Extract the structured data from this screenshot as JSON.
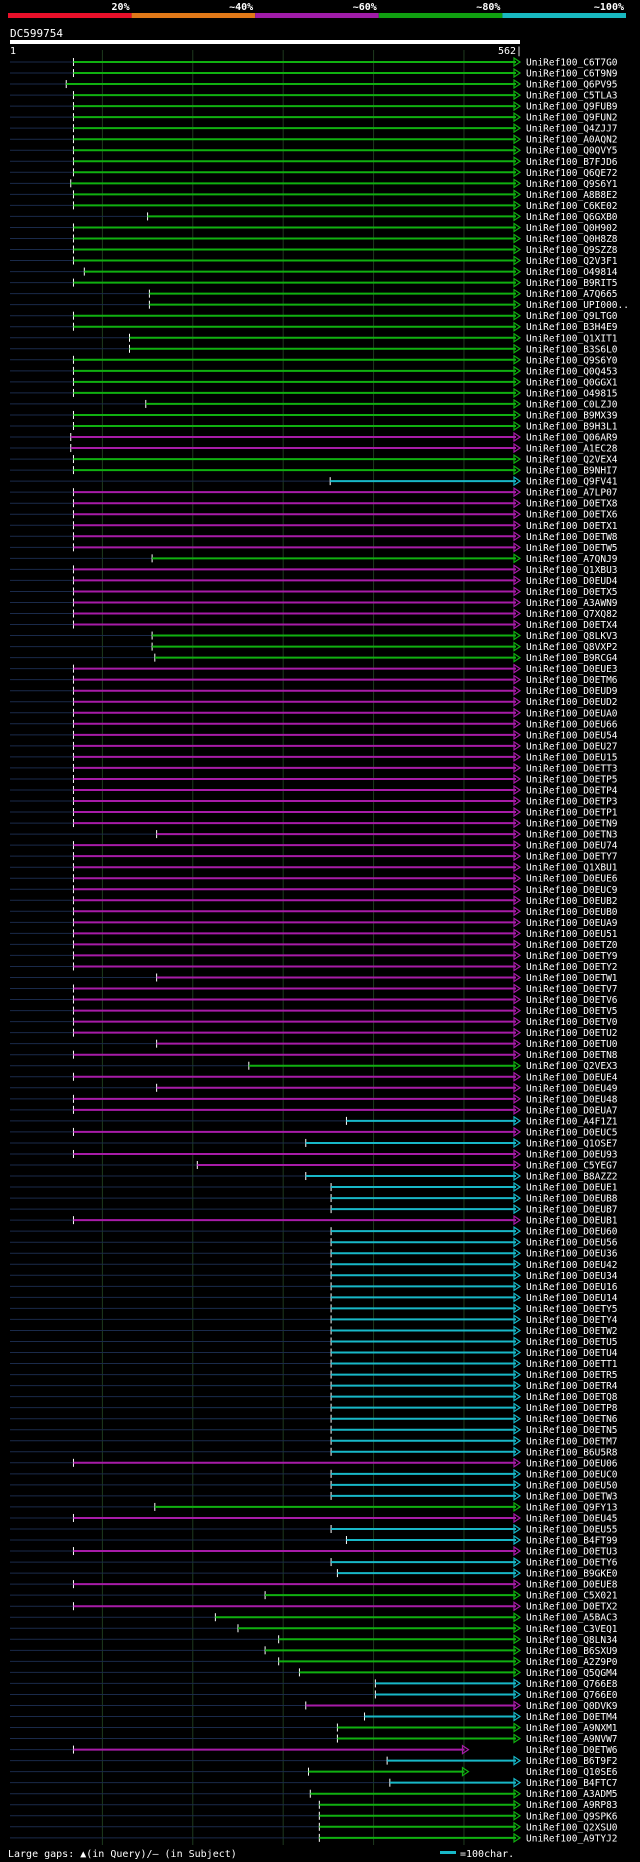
{
  "legend_scale": {
    "segments": [
      {
        "label": "20%",
        "color": "#e8102a"
      },
      {
        "label": "~40%",
        "color": "#e07818"
      },
      {
        "label": "~60%",
        "color": "#a01ca8"
      },
      {
        "label": "~80%",
        "color": "#10a010"
      },
      {
        "label": "~100%",
        "color": "#18b8c0"
      }
    ]
  },
  "query": {
    "name": "DC599754",
    "start_label": "1",
    "end_label": "562|",
    "length": 562
  },
  "hits": [
    {
      "name": "UniRef100_C6T7G0",
      "s": 68,
      "e": 562,
      "c": "g"
    },
    {
      "name": "UniRef100_C6T9N9",
      "s": 68,
      "e": 562,
      "c": "g"
    },
    {
      "name": "UniRef100_Q6PV95",
      "s": 60,
      "e": 562,
      "c": "g"
    },
    {
      "name": "UniRef100_C5TLA3",
      "s": 68,
      "e": 562,
      "c": "g"
    },
    {
      "name": "UniRef100_Q9FUB9",
      "s": 68,
      "e": 562,
      "c": "g"
    },
    {
      "name": "UniRef100_Q9FUN2",
      "s": 68,
      "e": 562,
      "c": "g"
    },
    {
      "name": "UniRef100_Q4ZJJ7",
      "s": 68,
      "e": 562,
      "c": "g"
    },
    {
      "name": "UniRef100_A0AQN2",
      "s": 68,
      "e": 562,
      "c": "g"
    },
    {
      "name": "UniRef100_Q0QVY5",
      "s": 68,
      "e": 562,
      "c": "g"
    },
    {
      "name": "UniRef100_B7FJD6",
      "s": 68,
      "e": 562,
      "c": "g"
    },
    {
      "name": "UniRef100_Q6QE72",
      "s": 68,
      "e": 562,
      "c": "g"
    },
    {
      "name": "UniRef100_Q9S6Y1",
      "s": 65,
      "e": 562,
      "c": "g"
    },
    {
      "name": "UniRef100_A8B8E2",
      "s": 68,
      "e": 562,
      "c": "g"
    },
    {
      "name": "UniRef100_C6KE02",
      "s": 68,
      "e": 562,
      "c": "g"
    },
    {
      "name": "UniRef100_Q6GXB0",
      "s": 150,
      "e": 562,
      "c": "g"
    },
    {
      "name": "UniRef100_Q0H902",
      "s": 68,
      "e": 562,
      "c": "g"
    },
    {
      "name": "UniRef100_Q0H8Z8",
      "s": 68,
      "e": 562,
      "c": "g"
    },
    {
      "name": "UniRef100_Q9SZZ8",
      "s": 68,
      "e": 562,
      "c": "g"
    },
    {
      "name": "UniRef100_Q2V3F1",
      "s": 68,
      "e": 562,
      "c": "g"
    },
    {
      "name": "UniRef100_O49814",
      "s": 80,
      "e": 562,
      "c": "g"
    },
    {
      "name": "UniRef100_B9RIT5",
      "s": 68,
      "e": 562,
      "c": "g"
    },
    {
      "name": "UniRef100_A7Q665",
      "s": 152,
      "e": 562,
      "c": "g"
    },
    {
      "name": "UniRef100_UPI000..",
      "s": 152,
      "e": 562,
      "c": "g"
    },
    {
      "name": "UniRef100_Q9LTG0",
      "s": 68,
      "e": 562,
      "c": "g"
    },
    {
      "name": "UniRef100_B3H4E9",
      "s": 68,
      "e": 562,
      "c": "g"
    },
    {
      "name": "UniRef100_Q1XIT1",
      "s": 130,
      "e": 562,
      "c": "g"
    },
    {
      "name": "UniRef100_B3S6L0",
      "s": 130,
      "e": 562,
      "c": "g"
    },
    {
      "name": "UniRef100_Q9S6Y0",
      "s": 68,
      "e": 562,
      "c": "g"
    },
    {
      "name": "UniRef100_Q0Q453",
      "s": 68,
      "e": 562,
      "c": "g"
    },
    {
      "name": "UniRef100_Q0GGX1",
      "s": 68,
      "e": 562,
      "c": "g"
    },
    {
      "name": "UniRef100_O49815",
      "s": 68,
      "e": 562,
      "c": "g"
    },
    {
      "name": "UniRef100_C0LZJ0",
      "s": 148,
      "e": 562,
      "c": "g"
    },
    {
      "name": "UniRef100_B9MX39",
      "s": 68,
      "e": 562,
      "c": "g"
    },
    {
      "name": "UniRef100_B9H3L1",
      "s": 68,
      "e": 562,
      "c": "g"
    },
    {
      "name": "UniRef100_Q06AR9",
      "s": 65,
      "e": 562,
      "c": "p"
    },
    {
      "name": "UniRef100_A1EC28",
      "s": 65,
      "e": 562,
      "c": "p"
    },
    {
      "name": "UniRef100_Q2VEX4",
      "s": 68,
      "e": 562,
      "c": "g"
    },
    {
      "name": "UniRef100_B9NHI7",
      "s": 68,
      "e": 562,
      "c": "g"
    },
    {
      "name": "UniRef100_Q9FV41",
      "s": 352,
      "e": 562,
      "c": "c"
    },
    {
      "name": "UniRef100_A7LP07",
      "s": 68,
      "e": 562,
      "c": "p"
    },
    {
      "name": "UniRef100_D0ETX8",
      "s": 68,
      "e": 562,
      "c": "p"
    },
    {
      "name": "UniRef100_D0ETX6",
      "s": 68,
      "e": 562,
      "c": "p"
    },
    {
      "name": "UniRef100_D0ETX1",
      "s": 68,
      "e": 562,
      "c": "p"
    },
    {
      "name": "UniRef100_D0ETW8",
      "s": 68,
      "e": 562,
      "c": "p"
    },
    {
      "name": "UniRef100_D0ETW5",
      "s": 68,
      "e": 562,
      "c": "p"
    },
    {
      "name": "UniRef100_A7QNJ9",
      "s": 155,
      "e": 562,
      "c": "g"
    },
    {
      "name": "UniRef100_Q1XBU3",
      "s": 68,
      "e": 562,
      "c": "p"
    },
    {
      "name": "UniRef100_D0EUD4",
      "s": 68,
      "e": 562,
      "c": "p"
    },
    {
      "name": "UniRef100_D0ETX5",
      "s": 68,
      "e": 562,
      "c": "p"
    },
    {
      "name": "UniRef100_A3AWN9",
      "s": 68,
      "e": 562,
      "c": "p"
    },
    {
      "name": "UniRef100_Q7XQ82",
      "s": 68,
      "e": 562,
      "c": "p"
    },
    {
      "name": "UniRef100_D0ETX4",
      "s": 68,
      "e": 562,
      "c": "p"
    },
    {
      "name": "UniRef100_Q8LKV3",
      "s": 155,
      "e": 562,
      "c": "g"
    },
    {
      "name": "UniRef100_Q8VXP2",
      "s": 155,
      "e": 562,
      "c": "g"
    },
    {
      "name": "UniRef100_B9RCG4",
      "s": 158,
      "e": 562,
      "c": "g"
    },
    {
      "name": "UniRef100_D0EUE3",
      "s": 68,
      "e": 562,
      "c": "p"
    },
    {
      "name": "UniRef100_D0ETM6",
      "s": 68,
      "e": 562,
      "c": "p"
    },
    {
      "name": "UniRef100_D0EUD9",
      "s": 68,
      "e": 562,
      "c": "p"
    },
    {
      "name": "UniRef100_D0EUD2",
      "s": 68,
      "e": 562,
      "c": "p"
    },
    {
      "name": "UniRef100_D0EUA0",
      "s": 68,
      "e": 562,
      "c": "p"
    },
    {
      "name": "UniRef100_D0EU66",
      "s": 68,
      "e": 562,
      "c": "p"
    },
    {
      "name": "UniRef100_D0EU54",
      "s": 68,
      "e": 562,
      "c": "p"
    },
    {
      "name": "UniRef100_D0EU27",
      "s": 68,
      "e": 562,
      "c": "p"
    },
    {
      "name": "UniRef100_D0EU15",
      "s": 68,
      "e": 562,
      "c": "p"
    },
    {
      "name": "UniRef100_D0ETT3",
      "s": 68,
      "e": 562,
      "c": "p"
    },
    {
      "name": "UniRef100_D0ETP5",
      "s": 68,
      "e": 562,
      "c": "p"
    },
    {
      "name": "UniRef100_D0ETP4",
      "s": 68,
      "e": 562,
      "c": "p"
    },
    {
      "name": "UniRef100_D0ETP3",
      "s": 68,
      "e": 562,
      "c": "p"
    },
    {
      "name": "UniRef100_D0ETP1",
      "s": 68,
      "e": 562,
      "c": "p"
    },
    {
      "name": "UniRef100_D0ETN9",
      "s": 68,
      "e": 562,
      "c": "p"
    },
    {
      "name": "UniRef100_D0ETN3",
      "s": 160,
      "e": 562,
      "c": "p"
    },
    {
      "name": "UniRef100_D0EU74",
      "s": 68,
      "e": 562,
      "c": "p"
    },
    {
      "name": "UniRef100_D0ETY7",
      "s": 68,
      "e": 562,
      "c": "p"
    },
    {
      "name": "UniRef100_Q1XBU1",
      "s": 68,
      "e": 562,
      "c": "p"
    },
    {
      "name": "UniRef100_D0EUE6",
      "s": 68,
      "e": 562,
      "c": "p"
    },
    {
      "name": "UniRef100_D0EUC9",
      "s": 68,
      "e": 562,
      "c": "p"
    },
    {
      "name": "UniRef100_D0EUB2",
      "s": 68,
      "e": 562,
      "c": "p"
    },
    {
      "name": "UniRef100_D0EUB0",
      "s": 68,
      "e": 562,
      "c": "p"
    },
    {
      "name": "UniRef100_D0EUA9",
      "s": 68,
      "e": 562,
      "c": "p"
    },
    {
      "name": "UniRef100_D0EU51",
      "s": 68,
      "e": 562,
      "c": "p"
    },
    {
      "name": "UniRef100_D0ETZ0",
      "s": 68,
      "e": 562,
      "c": "p"
    },
    {
      "name": "UniRef100_D0ETY9",
      "s": 68,
      "e": 562,
      "c": "p"
    },
    {
      "name": "UniRef100_D0ETY2",
      "s": 68,
      "e": 562,
      "c": "p"
    },
    {
      "name": "UniRef100_D0ETW1",
      "s": 160,
      "e": 562,
      "c": "p"
    },
    {
      "name": "UniRef100_D0ETV7",
      "s": 68,
      "e": 562,
      "c": "p"
    },
    {
      "name": "UniRef100_D0ETV6",
      "s": 68,
      "e": 562,
      "c": "p"
    },
    {
      "name": "UniRef100_D0ETV5",
      "s": 68,
      "e": 562,
      "c": "p"
    },
    {
      "name": "UniRef100_D0ETV0",
      "s": 68,
      "e": 562,
      "c": "p"
    },
    {
      "name": "UniRef100_D0ETU2",
      "s": 68,
      "e": 562,
      "c": "p"
    },
    {
      "name": "UniRef100_D0ETU0",
      "s": 160,
      "e": 562,
      "c": "p"
    },
    {
      "name": "UniRef100_D0ETN8",
      "s": 68,
      "e": 562,
      "c": "p"
    },
    {
      "name": "UniRef100_Q2VEX3",
      "s": 262,
      "e": 562,
      "c": "g"
    },
    {
      "name": "UniRef100_D0EUE4",
      "s": 68,
      "e": 562,
      "c": "p"
    },
    {
      "name": "UniRef100_D0EU49",
      "s": 160,
      "e": 562,
      "c": "p"
    },
    {
      "name": "UniRef100_D0EU48",
      "s": 68,
      "e": 562,
      "c": "p"
    },
    {
      "name": "UniRef100_D0EUA7",
      "s": 68,
      "e": 562,
      "c": "p"
    },
    {
      "name": "UniRef100_A4F1Z1",
      "s": 370,
      "e": 562,
      "c": "c"
    },
    {
      "name": "UniRef100_D0EUC5",
      "s": 68,
      "e": 562,
      "c": "p"
    },
    {
      "name": "UniRef100_Q1OSE7",
      "s": 325,
      "e": 562,
      "c": "c"
    },
    {
      "name": "UniRef100_D0EU93",
      "s": 68,
      "e": 562,
      "c": "p"
    },
    {
      "name": "UniRef100_C5YEG7",
      "s": 205,
      "e": 562,
      "c": "p"
    },
    {
      "name": "UniRef100_B8AZZ2",
      "s": 325,
      "e": 562,
      "c": "c"
    },
    {
      "name": "UniRef100_D0EUE1",
      "s": 353,
      "e": 562,
      "c": "c"
    },
    {
      "name": "UniRef100_D0EUB8",
      "s": 353,
      "e": 562,
      "c": "c"
    },
    {
      "name": "UniRef100_D0EUB7",
      "s": 353,
      "e": 562,
      "c": "c"
    },
    {
      "name": "UniRef100_D0EUB1",
      "s": 68,
      "e": 562,
      "c": "p"
    },
    {
      "name": "UniRef100_D0EU60",
      "s": 353,
      "e": 562,
      "c": "c"
    },
    {
      "name": "UniRef100_D0EU56",
      "s": 353,
      "e": 562,
      "c": "c"
    },
    {
      "name": "UniRef100_D0EU36",
      "s": 353,
      "e": 562,
      "c": "c"
    },
    {
      "name": "UniRef100_D0EU42",
      "s": 353,
      "e": 562,
      "c": "c"
    },
    {
      "name": "UniRef100_D0EU34",
      "s": 353,
      "e": 562,
      "c": "c"
    },
    {
      "name": "UniRef100_D0EU16",
      "s": 353,
      "e": 562,
      "c": "c"
    },
    {
      "name": "UniRef100_D0EU14",
      "s": 353,
      "e": 562,
      "c": "c"
    },
    {
      "name": "UniRef100_D0ETY5",
      "s": 353,
      "e": 562,
      "c": "c"
    },
    {
      "name": "UniRef100_D0ETY4",
      "s": 353,
      "e": 562,
      "c": "c"
    },
    {
      "name": "UniRef100_D0ETW2",
      "s": 353,
      "e": 562,
      "c": "c"
    },
    {
      "name": "UniRef100_D0ETU5",
      "s": 353,
      "e": 562,
      "c": "c"
    },
    {
      "name": "UniRef100_D0ETU4",
      "s": 353,
      "e": 562,
      "c": "c"
    },
    {
      "name": "UniRef100_D0ETT1",
      "s": 353,
      "e": 562,
      "c": "c"
    },
    {
      "name": "UniRef100_D0ETR5",
      "s": 353,
      "e": 562,
      "c": "c"
    },
    {
      "name": "UniRef100_D0ETR4",
      "s": 353,
      "e": 562,
      "c": "c"
    },
    {
      "name": "UniRef100_D0ETQ8",
      "s": 353,
      "e": 562,
      "c": "c"
    },
    {
      "name": "UniRef100_D0ETP8",
      "s": 353,
      "e": 562,
      "c": "c"
    },
    {
      "name": "UniRef100_D0ETN6",
      "s": 353,
      "e": 562,
      "c": "c"
    },
    {
      "name": "UniRef100_D0ETN5",
      "s": 353,
      "e": 562,
      "c": "c"
    },
    {
      "name": "UniRef100_D0ETM7",
      "s": 353,
      "e": 562,
      "c": "c"
    },
    {
      "name": "UniRef100_B6U5R8",
      "s": 353,
      "e": 562,
      "c": "c"
    },
    {
      "name": "UniRef100_D0EU06",
      "s": 68,
      "e": 562,
      "c": "p"
    },
    {
      "name": "UniRef100_D0EUC0",
      "s": 353,
      "e": 562,
      "c": "c"
    },
    {
      "name": "UniRef100_D0EU50",
      "s": 353,
      "e": 562,
      "c": "c"
    },
    {
      "name": "UniRef100_D0ETW3",
      "s": 353,
      "e": 562,
      "c": "c"
    },
    {
      "name": "UniRef100_Q9FY13",
      "s": 158,
      "e": 562,
      "c": "g"
    },
    {
      "name": "UniRef100_D0EU45",
      "s": 68,
      "e": 562,
      "c": "p"
    },
    {
      "name": "UniRef100_D0EU55",
      "s": 353,
      "e": 562,
      "c": "c"
    },
    {
      "name": "UniRef100_B4FT99",
      "s": 370,
      "e": 562,
      "c": "c"
    },
    {
      "name": "UniRef100_D0ETU3",
      "s": 68,
      "e": 562,
      "c": "p"
    },
    {
      "name": "UniRef100_D0ETY6",
      "s": 353,
      "e": 562,
      "c": "c"
    },
    {
      "name": "UniRef100_B9GKE0",
      "s": 360,
      "e": 562,
      "c": "c"
    },
    {
      "name": "UniRef100_D0EUE8",
      "s": 68,
      "e": 562,
      "c": "p"
    },
    {
      "name": "UniRef100_C5X021",
      "s": 280,
      "e": 562,
      "c": "g"
    },
    {
      "name": "UniRef100_D0ETX2",
      "s": 68,
      "e": 562,
      "c": "p"
    },
    {
      "name": "UniRef100_A5BAC3",
      "s": 225,
      "e": 562,
      "c": "g"
    },
    {
      "name": "UniRef100_C3VEQ1",
      "s": 250,
      "e": 562,
      "c": "g"
    },
    {
      "name": "UniRef100_Q8LN34",
      "s": 295,
      "e": 562,
      "c": "g"
    },
    {
      "name": "UniRef100_B6SXU9",
      "s": 280,
      "e": 562,
      "c": "g"
    },
    {
      "name": "UniRef100_A2Z9P0",
      "s": 295,
      "e": 562,
      "c": "g"
    },
    {
      "name": "UniRef100_Q5QGM4",
      "s": 318,
      "e": 562,
      "c": "g"
    },
    {
      "name": "UniRef100_Q766E8",
      "s": 402,
      "e": 562,
      "c": "c"
    },
    {
      "name": "UniRef100_Q766E0",
      "s": 402,
      "e": 562,
      "c": "c"
    },
    {
      "name": "UniRef100_Q0DVK9",
      "s": 325,
      "e": 562,
      "c": "p"
    },
    {
      "name": "UniRef100_D0ETM4",
      "s": 390,
      "e": 562,
      "c": "c"
    },
    {
      "name": "UniRef100_A9NXM1",
      "s": 360,
      "e": 562,
      "c": "g"
    },
    {
      "name": "UniRef100_A9NVW7",
      "s": 360,
      "e": 562,
      "c": "g"
    },
    {
      "name": "UniRef100_D0ETW6",
      "s": 68,
      "e": 505,
      "c": "p"
    },
    {
      "name": "UniRef100_B6T9F2",
      "s": 415,
      "e": 562,
      "c": "c"
    },
    {
      "name": "UniRef100_Q10SE6",
      "s": 328,
      "e": 505,
      "c": "g"
    },
    {
      "name": "UniRef100_B4FTC7",
      "s": 418,
      "e": 562,
      "c": "c"
    },
    {
      "name": "UniRef100_A3ADM5",
      "s": 330,
      "e": 562,
      "c": "g"
    },
    {
      "name": "UniRef100_A9RP83",
      "s": 340,
      "e": 562,
      "c": "g"
    },
    {
      "name": "UniRef100_Q9SPK6",
      "s": 340,
      "e": 562,
      "c": "g"
    },
    {
      "name": "UniRef100_Q2XSU0",
      "s": 340,
      "e": 562,
      "c": "g"
    },
    {
      "name": "UniRef100_A9TYJ2",
      "s": 340,
      "e": 562,
      "c": "g"
    }
  ],
  "hit_colors": {
    "g": "#10b010",
    "p": "#a81ca8",
    "c": "#18b8c8"
  },
  "footer": {
    "gaps_label": "Large gaps: ▲(in Query)/— (in Subject)",
    "scale_label": "=100char.",
    "scale_color": "#18b8c8"
  }
}
